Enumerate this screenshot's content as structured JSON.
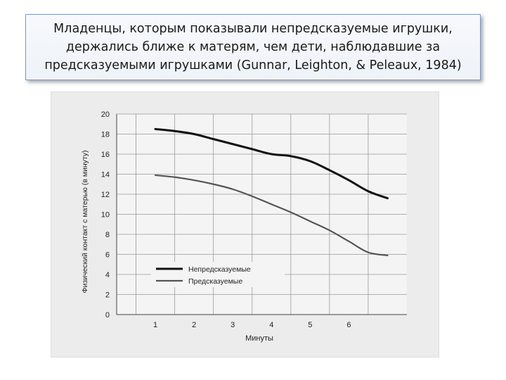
{
  "slide": {
    "title": "Младенцы, которым показывали непредсказуемые игрушки, держались ближе к матерям, чем дети, наблюдавшие за предсказуемыми игрушками (Gunnar, Leighton, & Peleaux, 1984)"
  },
  "chart_data": {
    "type": "line",
    "title": "",
    "xlabel": "Минуты",
    "ylabel": "Физический контакт с матерью (в минуту)",
    "x_ticks": [
      1,
      2,
      3,
      4,
      5,
      6
    ],
    "y_ticks": [
      0,
      2,
      4,
      6,
      8,
      10,
      12,
      14,
      16,
      18,
      20
    ],
    "xlim": [
      0,
      7.5
    ],
    "ylim": [
      0,
      20
    ],
    "grid": true,
    "legend_position": "bottom-center",
    "series": [
      {
        "name": "Непредсказуемые",
        "color": "#111111",
        "x": [
          1,
          1.5,
          2,
          2.5,
          3,
          3.5,
          4,
          4.5,
          5,
          5.5,
          6,
          6.5,
          7
        ],
        "y": [
          18.5,
          18.3,
          18.0,
          17.5,
          17.0,
          16.5,
          16.0,
          15.8,
          15.3,
          14.4,
          13.4,
          12.3,
          11.6
        ]
      },
      {
        "name": "Предсказуемые",
        "color": "#555555",
        "x": [
          1,
          1.5,
          2,
          2.5,
          3,
          3.5,
          4,
          4.5,
          5,
          5.5,
          6,
          6.5,
          7
        ],
        "y": [
          13.9,
          13.7,
          13.4,
          13.0,
          12.5,
          11.8,
          11.0,
          10.2,
          9.3,
          8.4,
          7.3,
          6.2,
          5.9
        ]
      }
    ]
  }
}
